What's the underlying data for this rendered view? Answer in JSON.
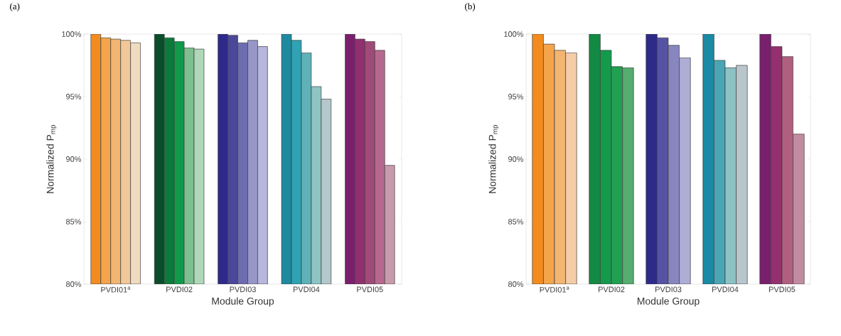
{
  "chart_data": [
    {
      "type": "bar",
      "title": "(a)",
      "xlabel": "Module Group",
      "ylabel": "Normalized P$_{mp}$",
      "categories": [
        "PVDI01$^{a}$",
        "PVDI02",
        "PVDI03",
        "PVDI04",
        "PVDI05"
      ],
      "ylim": [
        80,
        100
      ],
      "yticks": [
        {
          "value": 80,
          "label": "80%"
        },
        {
          "value": 85,
          "label": "85%"
        },
        {
          "value": 90,
          "label": "90%"
        },
        {
          "value": 95,
          "label": "95%"
        },
        {
          "value": 100,
          "label": "100%"
        }
      ],
      "grid": false,
      "series": [
        {
          "values": [
            100,
            100,
            100,
            100,
            100
          ],
          "colors": [
            "#f28c1e",
            "#0b4d2a",
            "#2e2a8a",
            "#1e8aa0",
            "#7a1f6e"
          ]
        },
        {
          "values": [
            99.7,
            99.7,
            99.9,
            99.5,
            99.6
          ],
          "colors": [
            "#f4a44a",
            "#0c7a3a",
            "#4a4898",
            "#2fa2b4",
            "#90306f"
          ]
        },
        {
          "values": [
            99.6,
            99.4,
            99.3,
            98.5,
            99.4
          ],
          "colors": [
            "#f3b572",
            "#10994a",
            "#6e6cb0",
            "#5eb2b8",
            "#a04a7a"
          ]
        },
        {
          "values": [
            99.5,
            98.9,
            99.5,
            95.8,
            98.7
          ],
          "colors": [
            "#f2c898",
            "#7dbf8e",
            "#9796c8",
            "#8ec4c4",
            "#b7688f"
          ]
        },
        {
          "values": [
            99.3,
            98.8,
            99.0,
            94.8,
            89.5
          ],
          "colors": [
            "#efdcc0",
            "#b0d8b8",
            "#b7b6dc",
            "#b4c8cc",
            "#c89aab"
          ]
        }
      ]
    },
    {
      "type": "bar",
      "title": "(b)",
      "xlabel": "Module Group",
      "ylabel": "Normalized P$_{mp}$",
      "categories": [
        "PVDI01$^{a}$",
        "PVDI02",
        "PVDI03",
        "PVDI04",
        "PVDI05"
      ],
      "ylim": [
        80,
        100
      ],
      "yticks": [
        {
          "value": 80,
          "label": "80%"
        },
        {
          "value": 85,
          "label": "85%"
        },
        {
          "value": 90,
          "label": "90%"
        },
        {
          "value": 95,
          "label": "95%"
        },
        {
          "value": 100,
          "label": "100%"
        }
      ],
      "grid": false,
      "series": [
        {
          "values": [
            100,
            100,
            100,
            100,
            100
          ],
          "colors": [
            "#f28c1e",
            "#138a44",
            "#2e2a8a",
            "#1a8aa5",
            "#7a1f6e"
          ]
        },
        {
          "values": [
            99.2,
            98.7,
            99.7,
            97.9,
            99.0
          ],
          "colors": [
            "#f4a44a",
            "#159a4c",
            "#5553a2",
            "#4aa6b4",
            "#94306f"
          ]
        },
        {
          "values": [
            98.7,
            97.4,
            99.1,
            97.3,
            98.2
          ],
          "colors": [
            "#f3b572",
            "#20a050",
            "#8786bf",
            "#8cc2c4",
            "#b0607e"
          ]
        },
        {
          "values": [
            98.5,
            97.3,
            98.1,
            97.5,
            92.0
          ],
          "colors": [
            "#f4cda8",
            "#55ad6f",
            "#aeadd6",
            "#b8c6cc",
            "#c28ca0"
          ]
        }
      ]
    }
  ]
}
